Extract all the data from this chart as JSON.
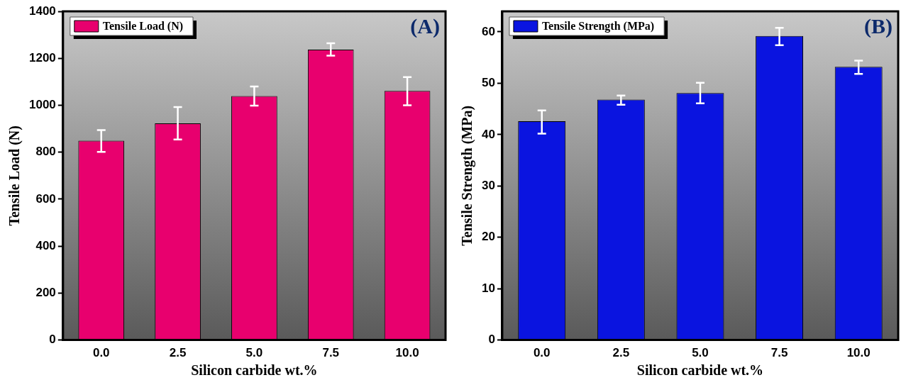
{
  "chart_data": [
    {
      "type": "bar",
      "xlabel": "Silicon carbide wt.%",
      "ylabel": "Tensile Load (N)",
      "categories": [
        "0.0",
        "2.5",
        "5.0",
        "7.5",
        "10.0"
      ],
      "series": [
        {
          "name": "Tensile Load (N)",
          "color": "#e8006e",
          "values": [
            849,
            923,
            1039,
            1237,
            1061
          ],
          "errors": [
            [
              801,
              894
            ],
            [
              854,
              992
            ],
            [
              998,
              1080
            ],
            [
              1211,
              1264
            ],
            [
              1000,
              1120
            ]
          ]
        }
      ],
      "ylim": [
        0,
        1400
      ],
      "yticks": [
        0,
        200,
        400,
        600,
        800,
        1000,
        1200,
        1400
      ],
      "legend": "top left",
      "grid": false,
      "annotations": [
        "(A)"
      ]
    },
    {
      "type": "bar",
      "xlabel": "Silicon carbide wt.%",
      "ylabel": "Tensile Strength (MPa)",
      "categories": [
        "0.0",
        "2.5",
        "5.0",
        "7.5",
        "10.0"
      ],
      "series": [
        {
          "name": "Tensile Strength (MPa)",
          "color": "#0a14e0",
          "values": [
            42.6,
            46.8,
            48.1,
            59.2,
            53.2
          ],
          "errors": [
            [
              40.2,
              44.7
            ],
            [
              45.8,
              47.6
            ],
            [
              46.1,
              50.1
            ],
            [
              57.4,
              60.8
            ],
            [
              51.8,
              54.4
            ]
          ]
        }
      ],
      "ylim": [
        0,
        64
      ],
      "yticks": [
        0,
        10,
        20,
        30,
        40,
        50,
        60
      ],
      "legend": "top left",
      "grid": false,
      "annotations": [
        "(B)"
      ]
    }
  ]
}
